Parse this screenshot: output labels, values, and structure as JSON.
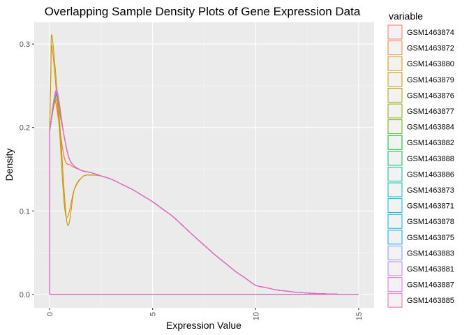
{
  "chart_data": {
    "type": "area",
    "title": "Overlapping Sample Density Plots of Gene Expression Data",
    "xlabel": "Expression Value",
    "ylabel": "Density",
    "xlim": [
      -0.75,
      15.75
    ],
    "ylim": [
      -0.016,
      0.326
    ],
    "x_ticks": [
      0,
      5,
      10,
      15
    ],
    "x_tick_labels": [
      "0",
      "5",
      "10",
      "15"
    ],
    "y_ticks": [
      0.0,
      0.1,
      0.2,
      0.3
    ],
    "y_tick_labels": [
      "0.0",
      "0.1",
      "0.2",
      "0.3"
    ],
    "grid": true,
    "legend": {
      "title": "variable",
      "placement": "right"
    },
    "series": [
      {
        "name": "GSM1463874",
        "color": "#F8766D",
        "peak_x": 0.3,
        "peak_y": 0.23,
        "shoulder_y": 0.165,
        "valley_x": null,
        "valley_y": null
      },
      {
        "name": "GSM1463872",
        "color": "#EC8239",
        "peak_x": 0.3,
        "peak_y": 0.229,
        "shoulder_y": 0.165,
        "valley_x": null,
        "valley_y": null
      },
      {
        "name": "GSM1463880",
        "color": "#DB8E00",
        "peak_x": 0.12,
        "peak_y": 0.296,
        "shoulder_y": null,
        "valley_x": 0.78,
        "valley_y": 0.095
      },
      {
        "name": "GSM1463879",
        "color": "#C79800",
        "peak_x": 0.12,
        "peak_y": 0.309,
        "shoulder_y": null,
        "valley_x": 0.85,
        "valley_y": 0.085
      },
      {
        "name": "GSM1463876",
        "color": "#AEA200",
        "peak_x": 0.35,
        "peak_y": 0.232,
        "shoulder_y": null,
        "valley_x": null,
        "valley_y": null
      },
      {
        "name": "GSM1463877",
        "color": "#8FAA00",
        "peak_x": 0.38,
        "peak_y": 0.236,
        "shoulder_y": null,
        "valley_x": null,
        "valley_y": null
      },
      {
        "name": "GSM1463884",
        "color": "#64B200",
        "peak_x": 0.38,
        "peak_y": 0.239,
        "shoulder_y": null,
        "valley_x": null,
        "valley_y": null
      },
      {
        "name": "GSM1463882",
        "color": "#00B81B",
        "peak_x": 0.38,
        "peak_y": 0.237,
        "shoulder_y": null,
        "valley_x": null,
        "valley_y": null
      },
      {
        "name": "GSM1463888",
        "color": "#00BD5C",
        "peak_x": 0.38,
        "peak_y": 0.24,
        "shoulder_y": null,
        "valley_x": null,
        "valley_y": null
      },
      {
        "name": "GSM1463886",
        "color": "#00C08E",
        "peak_x": 0.38,
        "peak_y": 0.238,
        "shoulder_y": null,
        "valley_x": null,
        "valley_y": null
      },
      {
        "name": "GSM1463873",
        "color": "#00C1B7",
        "peak_x": 0.38,
        "peak_y": 0.241,
        "shoulder_y": null,
        "valley_x": null,
        "valley_y": null
      },
      {
        "name": "GSM1463871",
        "color": "#00BDDC",
        "peak_x": 0.38,
        "peak_y": 0.239,
        "shoulder_y": null,
        "valley_x": null,
        "valley_y": null
      },
      {
        "name": "GSM1463878",
        "color": "#00B4EF",
        "peak_x": 0.38,
        "peak_y": 0.242,
        "shoulder_y": null,
        "valley_x": null,
        "valley_y": null
      },
      {
        "name": "GSM1463875",
        "color": "#00A5FF",
        "peak_x": 0.38,
        "peak_y": 0.24,
        "shoulder_y": null,
        "valley_x": null,
        "valley_y": null
      },
      {
        "name": "GSM1463883",
        "color": "#7F96FF",
        "peak_x": 0.38,
        "peak_y": 0.241,
        "shoulder_y": null,
        "valley_x": null,
        "valley_y": null
      },
      {
        "name": "GSM1463881",
        "color": "#BC81FF",
        "peak_x": 0.38,
        "peak_y": 0.239,
        "shoulder_y": null,
        "valley_x": null,
        "valley_y": null
      },
      {
        "name": "GSM1463887",
        "color": "#E26EF7",
        "peak_x": 0.38,
        "peak_y": 0.242,
        "shoulder_y": null,
        "valley_x": null,
        "valley_y": null
      },
      {
        "name": "GSM1463885",
        "color": "#FF63B6",
        "peak_x": 0.38,
        "peak_y": 0.24,
        "shoulder_y": null,
        "valley_x": null,
        "valley_y": null
      }
    ],
    "common_tail": [
      [
        1.0,
        0.16
      ],
      [
        1.5,
        0.149
      ],
      [
        2.0,
        0.146
      ],
      [
        3.0,
        0.138
      ],
      [
        4.0,
        0.126
      ],
      [
        5.0,
        0.111
      ],
      [
        6.0,
        0.093
      ],
      [
        7.0,
        0.07
      ],
      [
        8.0,
        0.048
      ],
      [
        9.0,
        0.028
      ],
      [
        10.0,
        0.011
      ],
      [
        11.0,
        0.0055
      ],
      [
        12.0,
        0.0025
      ],
      [
        13.0,
        0.001
      ],
      [
        14.0,
        0.0003
      ],
      [
        15.0,
        0.0
      ]
    ],
    "x_start": 0.0,
    "x_end": 15.0
  }
}
